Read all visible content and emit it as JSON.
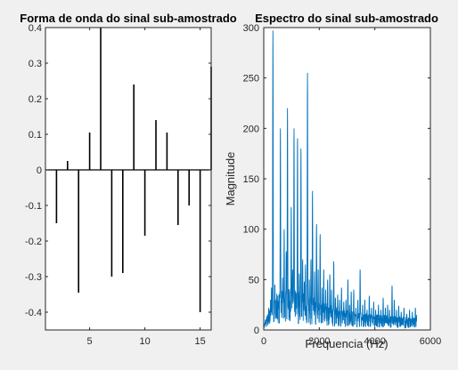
{
  "chart_data": [
    {
      "type": "stem",
      "title": "Forma de onda do sinal sub-amostrado",
      "xlabel": "",
      "ylabel": "",
      "xlim": [
        1,
        16
      ],
      "ylim": [
        -0.45,
        0.4
      ],
      "xticks": [
        5,
        10,
        15
      ],
      "yticks": [
        0.4,
        0.3,
        0.2,
        0.1,
        0,
        -0.1,
        -0.2,
        -0.3,
        -0.4
      ],
      "ytick_labels": [
        "0.4",
        "0.3",
        "0.2",
        "0.1",
        "0",
        "-0.1",
        "-0.2",
        "-0.3",
        "-0.4"
      ],
      "baseline": 0,
      "x": [
        1,
        2,
        3,
        4,
        5,
        6,
        7,
        8,
        9,
        10,
        11,
        12,
        13,
        14,
        15,
        16
      ],
      "values": [
        0.0,
        -0.15,
        0.025,
        -0.345,
        0.105,
        0.4,
        -0.3,
        -0.29,
        0.24,
        -0.185,
        0.14,
        0.105,
        -0.155,
        -0.1,
        -0.4,
        0.29
      ],
      "grid": false,
      "color": "#000000"
    },
    {
      "type": "line",
      "title": "Espectro do sinal sub-amostrado",
      "xlabel": "Frequencia (Hz)",
      "ylabel": "Magnitude",
      "xlim": [
        0,
        6000
      ],
      "ylim": [
        0,
        300
      ],
      "xticks": [
        0,
        2000,
        4000,
        6000
      ],
      "yticks": [
        0,
        50,
        100,
        150,
        200,
        250,
        300
      ],
      "grid": false,
      "color": "#0072bd",
      "x_range": [
        0,
        5512
      ],
      "peaks": [
        {
          "x": 60,
          "y": 10
        },
        {
          "x": 120,
          "y": 14
        },
        {
          "x": 180,
          "y": 22
        },
        {
          "x": 245,
          "y": 30
        },
        {
          "x": 280,
          "y": 42
        },
        {
          "x": 300,
          "y": 20
        },
        {
          "x": 330,
          "y": 297
        },
        {
          "x": 400,
          "y": 45
        },
        {
          "x": 470,
          "y": 36
        },
        {
          "x": 545,
          "y": 35
        },
        {
          "x": 600,
          "y": 200
        },
        {
          "x": 680,
          "y": 52
        },
        {
          "x": 735,
          "y": 100
        },
        {
          "x": 810,
          "y": 78
        },
        {
          "x": 855,
          "y": 220
        },
        {
          "x": 920,
          "y": 35
        },
        {
          "x": 990,
          "y": 122
        },
        {
          "x": 1040,
          "y": 60
        },
        {
          "x": 1090,
          "y": 200
        },
        {
          "x": 1150,
          "y": 30
        },
        {
          "x": 1215,
          "y": 190
        },
        {
          "x": 1280,
          "y": 56
        },
        {
          "x": 1340,
          "y": 180
        },
        {
          "x": 1400,
          "y": 70
        },
        {
          "x": 1460,
          "y": 48
        },
        {
          "x": 1500,
          "y": 65
        },
        {
          "x": 1575,
          "y": 255
        },
        {
          "x": 1640,
          "y": 50
        },
        {
          "x": 1700,
          "y": 70
        },
        {
          "x": 1755,
          "y": 138
        },
        {
          "x": 1830,
          "y": 58
        },
        {
          "x": 1900,
          "y": 105
        },
        {
          "x": 1960,
          "y": 60
        },
        {
          "x": 2030,
          "y": 95
        },
        {
          "x": 2100,
          "y": 42
        },
        {
          "x": 2160,
          "y": 60
        },
        {
          "x": 2230,
          "y": 40
        },
        {
          "x": 2300,
          "y": 50
        },
        {
          "x": 2380,
          "y": 55
        },
        {
          "x": 2440,
          "y": 40
        },
        {
          "x": 2520,
          "y": 68
        },
        {
          "x": 2580,
          "y": 32
        },
        {
          "x": 2660,
          "y": 35
        },
        {
          "x": 2730,
          "y": 30
        },
        {
          "x": 2800,
          "y": 42
        },
        {
          "x": 2880,
          "y": 28
        },
        {
          "x": 2960,
          "y": 30
        },
        {
          "x": 3030,
          "y": 50
        },
        {
          "x": 3090,
          "y": 25
        },
        {
          "x": 3150,
          "y": 38
        },
        {
          "x": 3240,
          "y": 40
        },
        {
          "x": 3320,
          "y": 22
        },
        {
          "x": 3390,
          "y": 30
        },
        {
          "x": 3470,
          "y": 60
        },
        {
          "x": 3560,
          "y": 25
        },
        {
          "x": 3640,
          "y": 30
        },
        {
          "x": 3720,
          "y": 20
        },
        {
          "x": 3800,
          "y": 34
        },
        {
          "x": 3880,
          "y": 22
        },
        {
          "x": 3960,
          "y": 28
        },
        {
          "x": 4030,
          "y": 20
        },
        {
          "x": 4130,
          "y": 25
        },
        {
          "x": 4220,
          "y": 20
        },
        {
          "x": 4300,
          "y": 32
        },
        {
          "x": 4380,
          "y": 22
        },
        {
          "x": 4460,
          "y": 25
        },
        {
          "x": 4530,
          "y": 20
        },
        {
          "x": 4620,
          "y": 44
        },
        {
          "x": 4700,
          "y": 30
        },
        {
          "x": 4780,
          "y": 20
        },
        {
          "x": 4860,
          "y": 24
        },
        {
          "x": 4950,
          "y": 18
        },
        {
          "x": 5050,
          "y": 22
        },
        {
          "x": 5150,
          "y": 16
        },
        {
          "x": 5250,
          "y": 20
        },
        {
          "x": 5350,
          "y": 18
        },
        {
          "x": 5460,
          "y": 22
        },
        {
          "x": 5510,
          "y": 15
        }
      ],
      "peak_width_hz": 18,
      "noise_floor": [
        {
          "x": 0,
          "y": 3
        },
        {
          "x": 300,
          "y": 16
        },
        {
          "x": 600,
          "y": 22
        },
        {
          "x": 1000,
          "y": 24
        },
        {
          "x": 1500,
          "y": 22
        },
        {
          "x": 2000,
          "y": 17
        },
        {
          "x": 2600,
          "y": 13
        },
        {
          "x": 3200,
          "y": 11
        },
        {
          "x": 4000,
          "y": 9
        },
        {
          "x": 4800,
          "y": 8
        },
        {
          "x": 5512,
          "y": 7
        }
      ]
    }
  ]
}
